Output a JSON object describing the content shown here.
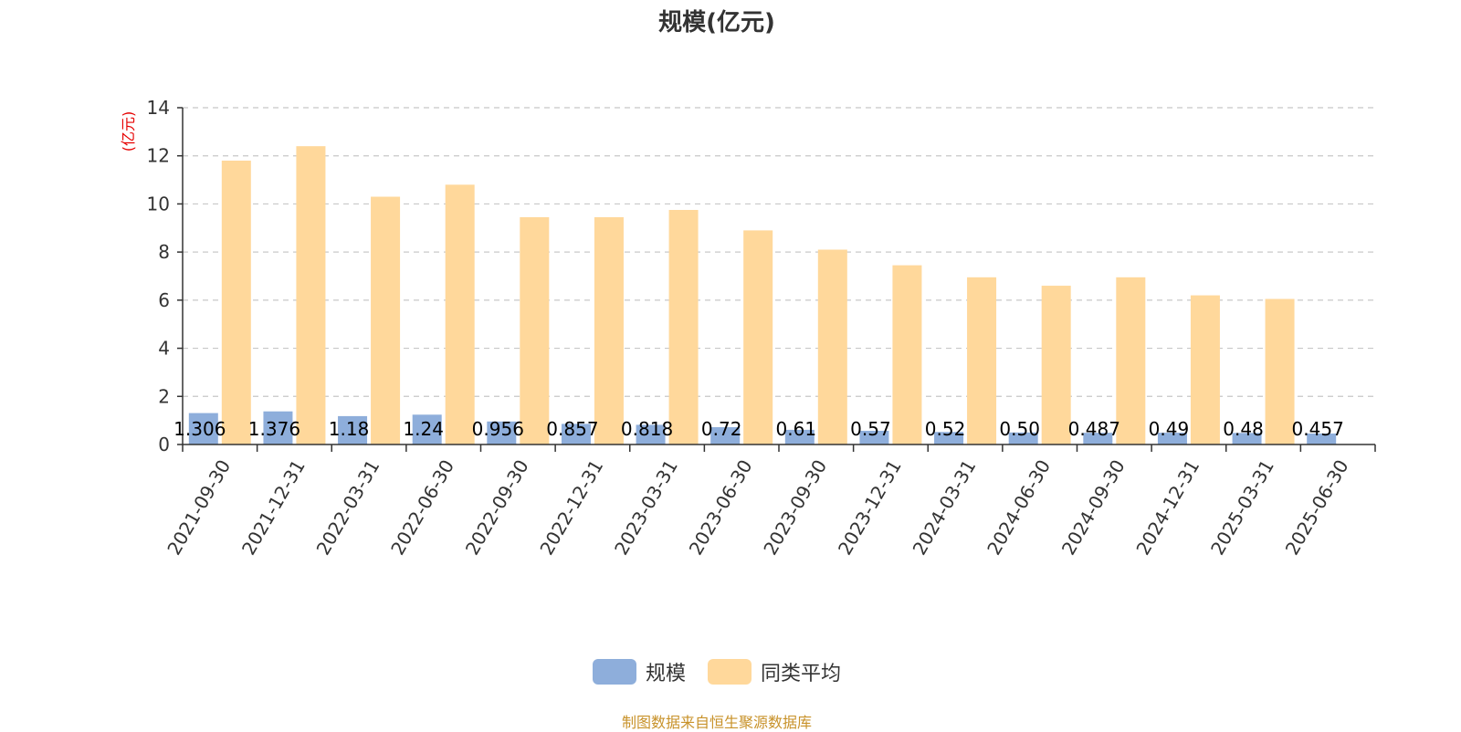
{
  "chart_data": {
    "type": "bar",
    "title": "规模(亿元)",
    "ylabel": "(亿元)",
    "xlabel": "",
    "ylim": [
      0,
      14
    ],
    "yticks": [
      0,
      2,
      4,
      6,
      8,
      10,
      12,
      14
    ],
    "grid": "horizontal-dashed",
    "legend_position": "bottom-center",
    "categories": [
      "2021-09-30",
      "2021-12-31",
      "2022-03-31",
      "2022-06-30",
      "2022-09-30",
      "2022-12-31",
      "2023-03-31",
      "2023-06-30",
      "2023-09-30",
      "2023-12-31",
      "2024-03-31",
      "2024-06-30",
      "2024-09-30",
      "2024-12-31",
      "2025-03-31",
      "2025-06-30"
    ],
    "series": [
      {
        "name": "规模",
        "color": "#8eaedb",
        "values": [
          1.306,
          1.376,
          1.18,
          1.24,
          0.956,
          0.857,
          0.818,
          0.72,
          0.61,
          0.57,
          0.52,
          0.5,
          0.487,
          0.49,
          0.48,
          0.457
        ],
        "data_labels": [
          "1.306",
          "1.376",
          "1.18",
          "1.24",
          "0.956",
          "0.857",
          "0.818",
          "0.72",
          "0.61",
          "0.57",
          "0.52",
          "0.50",
          "0.487",
          "0.49",
          "0.48",
          "0.457"
        ]
      },
      {
        "name": "同类平均",
        "color": "#ffd89b",
        "values": [
          11.8,
          12.4,
          10.3,
          10.8,
          9.45,
          9.45,
          9.75,
          8.9,
          8.1,
          7.45,
          6.95,
          6.6,
          6.95,
          6.2,
          6.05,
          null
        ]
      }
    ]
  },
  "footer": {
    "source": "制图数据来自恒生聚源数据库"
  }
}
